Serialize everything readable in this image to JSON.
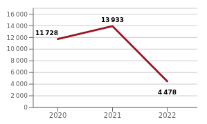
{
  "chart_data": {
    "type": "line",
    "x": [
      2020,
      2021,
      2022
    ],
    "values": [
      11728,
      13933,
      4478
    ],
    "value_labels": [
      "11 728",
      "13 933",
      "4 478"
    ],
    "data_labels": true,
    "color": "#9b1526",
    "xlim": [
      2019.55,
      2022.55
    ],
    "xticks": [
      2020,
      2021,
      2022
    ],
    "ylim": [
      0,
      17000
    ],
    "yticks": [
      0,
      {
        "value": 2000,
        "label": "2 000"
      },
      {
        "value": 4000,
        "label": "4 000"
      },
      {
        "value": 6000,
        "label": "6 000"
      },
      {
        "value": 8000,
        "label": "8 000"
      },
      {
        "value": 10000,
        "label": "10 000"
      },
      {
        "value": 12000,
        "label": "12 000"
      },
      {
        "value": 14000,
        "label": "14 000"
      },
      {
        "value": 16000,
        "label": "16 000"
      }
    ],
    "grid": true
  }
}
